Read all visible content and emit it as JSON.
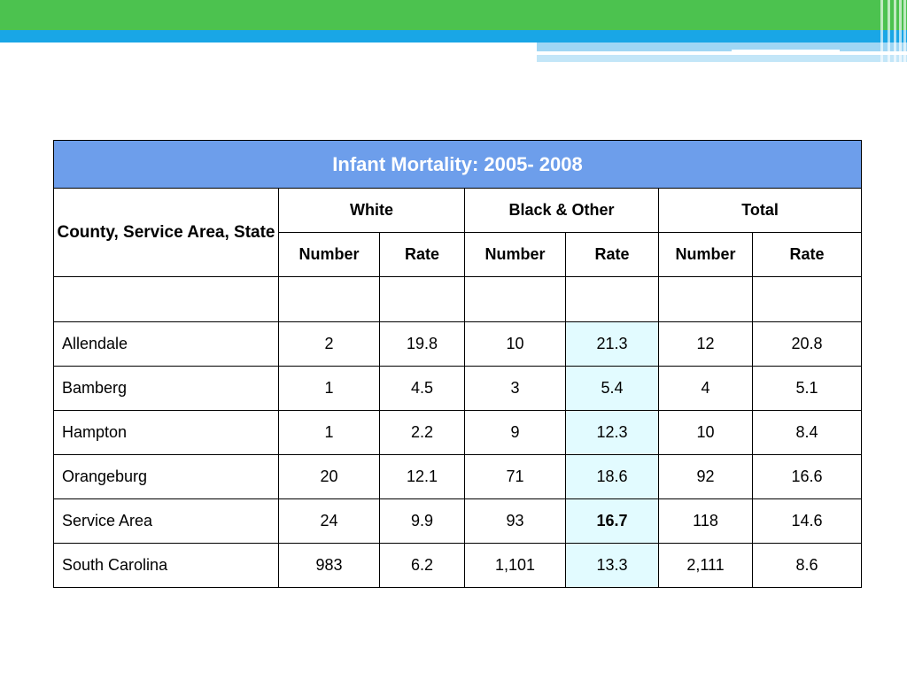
{
  "colors": {
    "header_bar_green": "#4cc24f",
    "header_bar_blue": "#19a6e6",
    "title_cell_background": "#6d9eeb",
    "highlight_column": "#e2fbff"
  },
  "table": {
    "title": "Infant Mortality:  2005- 2008",
    "row_header_label": "County, Service Area, State",
    "groups": [
      "White",
      "Black & Other",
      "Total"
    ],
    "subheaders": [
      "Number",
      "Rate",
      "Number",
      "Rate",
      "Number",
      "Rate"
    ],
    "rows": [
      {
        "name": "Allendale",
        "values": [
          "2",
          "19.8",
          "10",
          "21.3",
          "12",
          "20.8"
        ]
      },
      {
        "name": "Bamberg",
        "values": [
          "1",
          "4.5",
          "3",
          "5.4",
          "4",
          "5.1"
        ]
      },
      {
        "name": "Hampton",
        "values": [
          "1",
          "2.2",
          "9",
          "12.3",
          "10",
          "8.4"
        ]
      },
      {
        "name": "Orangeburg",
        "values": [
          "20",
          "12.1",
          "71",
          "18.6",
          "92",
          "16.6"
        ]
      },
      {
        "name": "Service Area",
        "values": [
          "24",
          "9.9",
          "93",
          "16.7",
          "118",
          "14.6"
        ]
      },
      {
        "name": "South Carolina",
        "values": [
          "983",
          "6.2",
          "1,101",
          "13.3",
          "2,111",
          "8.6"
        ]
      }
    ]
  }
}
